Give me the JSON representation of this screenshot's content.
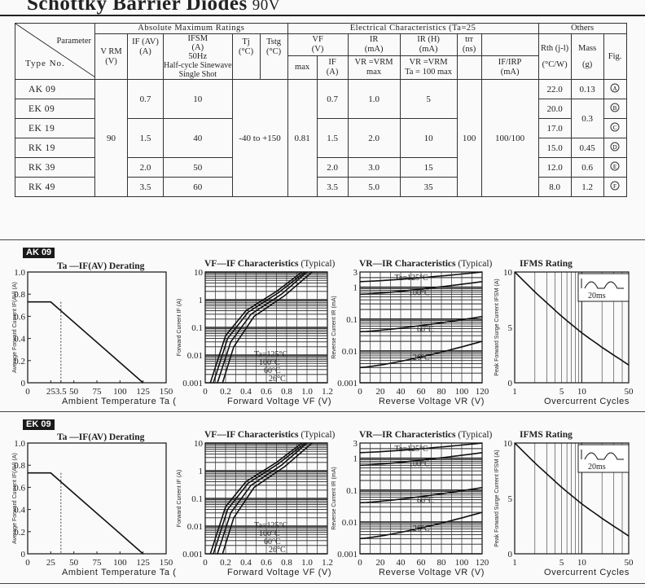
{
  "title": "Schottky Barrier Diodes",
  "voltage": "90V",
  "table": {
    "h_param": "Parameter",
    "h_type": "Type No.",
    "h_abs": "Absolute Maximum Ratings",
    "h_elec": "Electrical Characteristics",
    "h_elec_temp": "(Ta=25",
    "h_others": "Others",
    "h_vrm": "V RM",
    "h_vrm_u": "(V)",
    "h_ifav": "IF (AV)",
    "h_ifav_u": "(A)",
    "h_ifsm": "IFSM",
    "h_ifsm_u": "(A)",
    "h_ifsm_f": "50Hz",
    "h_ifsm_d1": "Half-cycle Sinewave",
    "h_ifsm_d2": "Single Shot",
    "h_tj": "Tj",
    "h_tj_u": "(°C)",
    "h_tstg": "Tstg",
    "h_tstg_u": "(°C)",
    "h_vf": "VF",
    "h_vf_u": "(V)",
    "h_vf_max": "max",
    "h_vf_if": "IF",
    "h_vf_if_u": "(A)",
    "h_ir": "IR",
    "h_ir_u": "(mA)",
    "h_ir_c": "VR =VRM",
    "h_ir_max": "max",
    "h_irh": "IR (H)",
    "h_irh_u": "(mA)",
    "h_irh_c": "VR =VRM",
    "h_irh_c2": "Ta = 100 max",
    "h_trr": "trr",
    "h_trr_u": "(ns)",
    "h_ifirp": "IF/IRP",
    "h_ifirp_u": "(mA)",
    "h_rth": "Rth (j-l)",
    "h_rth_u": "(°C/W)",
    "h_mass": "Mass",
    "h_mass_u": "(g)",
    "h_fig": "Fig.",
    "vrm": "90",
    "tj": "-40 to +150",
    "vf_max": "0.81",
    "trr": "100",
    "ifirp": "100/100",
    "rows": [
      {
        "type": "AK 09",
        "ifav": "0.7",
        "ifsm": "10",
        "vf_if": "0.7",
        "ir": "1.0",
        "irh": "5",
        "rth": "22.0",
        "mass": "0.13",
        "fig": "A"
      },
      {
        "type": "EK 09",
        "ifav": "",
        "ifsm": "",
        "vf_if": "",
        "ir": "",
        "irh": "",
        "rth": "20.0",
        "mass": "0.3",
        "fig": "B"
      },
      {
        "type": "EK 19",
        "ifav": "1.5",
        "ifsm": "40",
        "vf_if": "1.5",
        "ir": "2.0",
        "irh": "10",
        "rth": "17.0",
        "mass": "",
        "fig": "C"
      },
      {
        "type": "RK 19",
        "ifav": "",
        "ifsm": "",
        "vf_if": "",
        "ir": "",
        "irh": "",
        "rth": "15.0",
        "mass": "0.45",
        "fig": "D"
      },
      {
        "type": "RK 39",
        "ifav": "2.0",
        "ifsm": "50",
        "vf_if": "2.0",
        "ir": "3.0",
        "irh": "15",
        "rth": "12.0",
        "mass": "0.6",
        "fig": "E"
      },
      {
        "type": "RK 49",
        "ifav": "3.5",
        "ifsm": "60",
        "vf_if": "3.5",
        "ir": "5.0",
        "irh": "35",
        "rth": "8.0",
        "mass": "1.2",
        "fig": "F"
      }
    ]
  },
  "sections": [
    {
      "tag": "AK 09",
      "derating_title": "Ta —IF(AV) Derating",
      "derating_ylabel": "Average Forward Current  IF(AV) (A)",
      "derating_xlabel": "Ambient Temperature Ta (",
      "derating_xticks": [
        "0",
        "25",
        "3.5",
        "50",
        "75",
        "100",
        "125",
        "150"
      ],
      "derating_yticks": [
        "0",
        "0.2",
        "0.4",
        "0.6",
        "0.8",
        "1.0"
      ],
      "vfif_title": "VF—IF Characteristics",
      "vfif_ylabel": "Forward Current  IF (A)",
      "vfif_xlabel": "Forward Voltage VF (V)",
      "vfif_xticks": [
        "0",
        "0.2",
        "0.4",
        "0.6",
        "0.8",
        "1.0",
        "1.2"
      ],
      "vfif_yticks": [
        "0.001",
        "0.01",
        "0.1",
        "1",
        "10"
      ],
      "vfif_temps": [
        "Ta=125°C",
        "100°C",
        "60°C",
        "26°C"
      ],
      "vrir_title": "VR—IR Characteristics",
      "vrir_ylabel": "Reverse Current  IR (mA)",
      "vrir_xlabel": "Reverse Voltage VR (V)",
      "vrir_xticks": [
        "0",
        "20",
        "40",
        "60",
        "80",
        "100",
        "120"
      ],
      "vrir_yticks": [
        "0.001",
        "0.01",
        "0.1",
        "1",
        "3"
      ],
      "vrir_temps": [
        "Ta=125°C",
        "100°C",
        "60°C",
        "26°C"
      ],
      "ifms_title": "IFMS Rating",
      "ifms_ylabel": "Peak Forward Surge Current  IFSM (A)",
      "ifms_xlabel": "Overcurrent Cycles",
      "ifms_xticks": [
        "1",
        "5",
        "10",
        "50"
      ],
      "ifms_yticks": [
        "0",
        "5",
        "10"
      ],
      "ifms_inset": "20ms"
    },
    {
      "tag": "EK 09",
      "derating_title": "Ta —IF(AV) Derating",
      "derating_ylabel": "Average Forward Current  IF(AV) (A)",
      "derating_xlabel": "Ambient Temperature Ta (",
      "derating_xticks": [
        "0",
        "25",
        "50",
        "75",
        "100",
        "125",
        "150"
      ],
      "derating_yticks": [
        "0",
        "0.2",
        "0.4",
        "0.6",
        "0.8",
        "1.0"
      ],
      "vfif_title": "VF—IF Characteristics",
      "vfif_ylabel": "Forward Current  IF (A)",
      "vfif_xlabel": "Forward Voltage VF (V)",
      "vfif_xticks": [
        "0",
        "0.2",
        "0.4",
        "0.6",
        "0.8",
        "1.0",
        "1.2"
      ],
      "vfif_yticks": [
        "0.001",
        "0.01",
        "0.1",
        "1",
        "10"
      ],
      "vfif_temps": [
        "Ta=125°C",
        "100°C",
        "60°C",
        "26°C"
      ],
      "vrir_title": "VR—IR Characteristics",
      "vrir_ylabel": "Reverse Current  IR (mA)",
      "vrir_xlabel": "Reverse Voltage VR (V)",
      "vrir_xticks": [
        "0",
        "20",
        "40",
        "60",
        "80",
        "100",
        "120"
      ],
      "vrir_yticks": [
        "0.001",
        "0.01",
        "0.1",
        "1",
        "3"
      ],
      "vrir_temps": [
        "Ta=125°C",
        "100°C",
        "60°C",
        "26°C"
      ],
      "ifms_title": "IFMS Rating",
      "ifms_ylabel": "Peak Forward Surge Current  IFSM (A)",
      "ifms_xlabel": "Overcurrent Cycles",
      "ifms_xticks": [
        "1",
        "5",
        "10",
        "50"
      ],
      "ifms_yticks": [
        "0",
        "5",
        "10"
      ],
      "ifms_inset": "20ms"
    }
  ],
  "chart_data": [
    {
      "type": "line",
      "title": "Ta —IF(AV) Derating",
      "xlabel": "Ambient Temperature Ta (",
      "ylabel": "Average Forward Current IF(AV) (A)",
      "xlim": [
        0,
        150
      ],
      "ylim": [
        0,
        1.0
      ],
      "series": [
        {
          "x": [
            0,
            25,
            125
          ],
          "values": [
            0.73,
            0.73,
            0
          ]
        }
      ]
    },
    {
      "type": "line",
      "title": "VF—IF Characteristics",
      "xlabel": "Forward Voltage VF (V)",
      "ylabel": "Forward Current IF (A)",
      "xlim": [
        0,
        1.2
      ],
      "ylim": [
        0.001,
        10
      ],
      "log_y": true,
      "series": [
        {
          "name": "Ta=125°C",
          "x": [
            0.05,
            0.2,
            0.4,
            0.7,
            0.95
          ],
          "values": [
            0.001,
            0.05,
            0.4,
            2,
            10
          ]
        },
        {
          "name": "100°C",
          "x": [
            0.08,
            0.22,
            0.42,
            0.72,
            0.98
          ],
          "values": [
            0.001,
            0.04,
            0.35,
            1.8,
            10
          ]
        },
        {
          "name": "60°C",
          "x": [
            0.12,
            0.25,
            0.45,
            0.75,
            1.0
          ],
          "values": [
            0.001,
            0.03,
            0.3,
            1.6,
            10
          ]
        },
        {
          "name": "26°C",
          "x": [
            0.17,
            0.28,
            0.48,
            0.78,
            1.05
          ],
          "values": [
            0.001,
            0.02,
            0.25,
            1.4,
            10
          ]
        }
      ]
    },
    {
      "type": "line",
      "title": "VR—IR Characteristics",
      "xlabel": "Reverse Voltage VR (V)",
      "ylabel": "Reverse Current IR (mA)",
      "xlim": [
        0,
        120
      ],
      "ylim": [
        0.001,
        3
      ],
      "log_y": true,
      "series": [
        {
          "name": "Ta=125°C",
          "x": [
            0,
            120
          ],
          "values": [
            1.5,
            3
          ]
        },
        {
          "name": "100°C",
          "x": [
            0,
            120
          ],
          "values": [
            0.6,
            1.5
          ]
        },
        {
          "name": "60°C",
          "x": [
            0,
            120
          ],
          "values": [
            0.04,
            0.12
          ]
        },
        {
          "name": "26°C",
          "x": [
            0,
            120
          ],
          "values": [
            0.003,
            0.02
          ]
        }
      ]
    },
    {
      "type": "line",
      "title": "IFMS Rating",
      "xlabel": "Overcurrent Cycles",
      "ylabel": "Peak Forward Surge Current IFSM (A)",
      "xlim": [
        1,
        50
      ],
      "ylim": [
        0,
        10
      ],
      "log_x": true,
      "series": [
        {
          "x": [
            1,
            2,
            5,
            10,
            20,
            50
          ],
          "values": [
            10,
            8.2,
            6.0,
            4.5,
            3.2,
            1.6
          ]
        }
      ]
    }
  ]
}
